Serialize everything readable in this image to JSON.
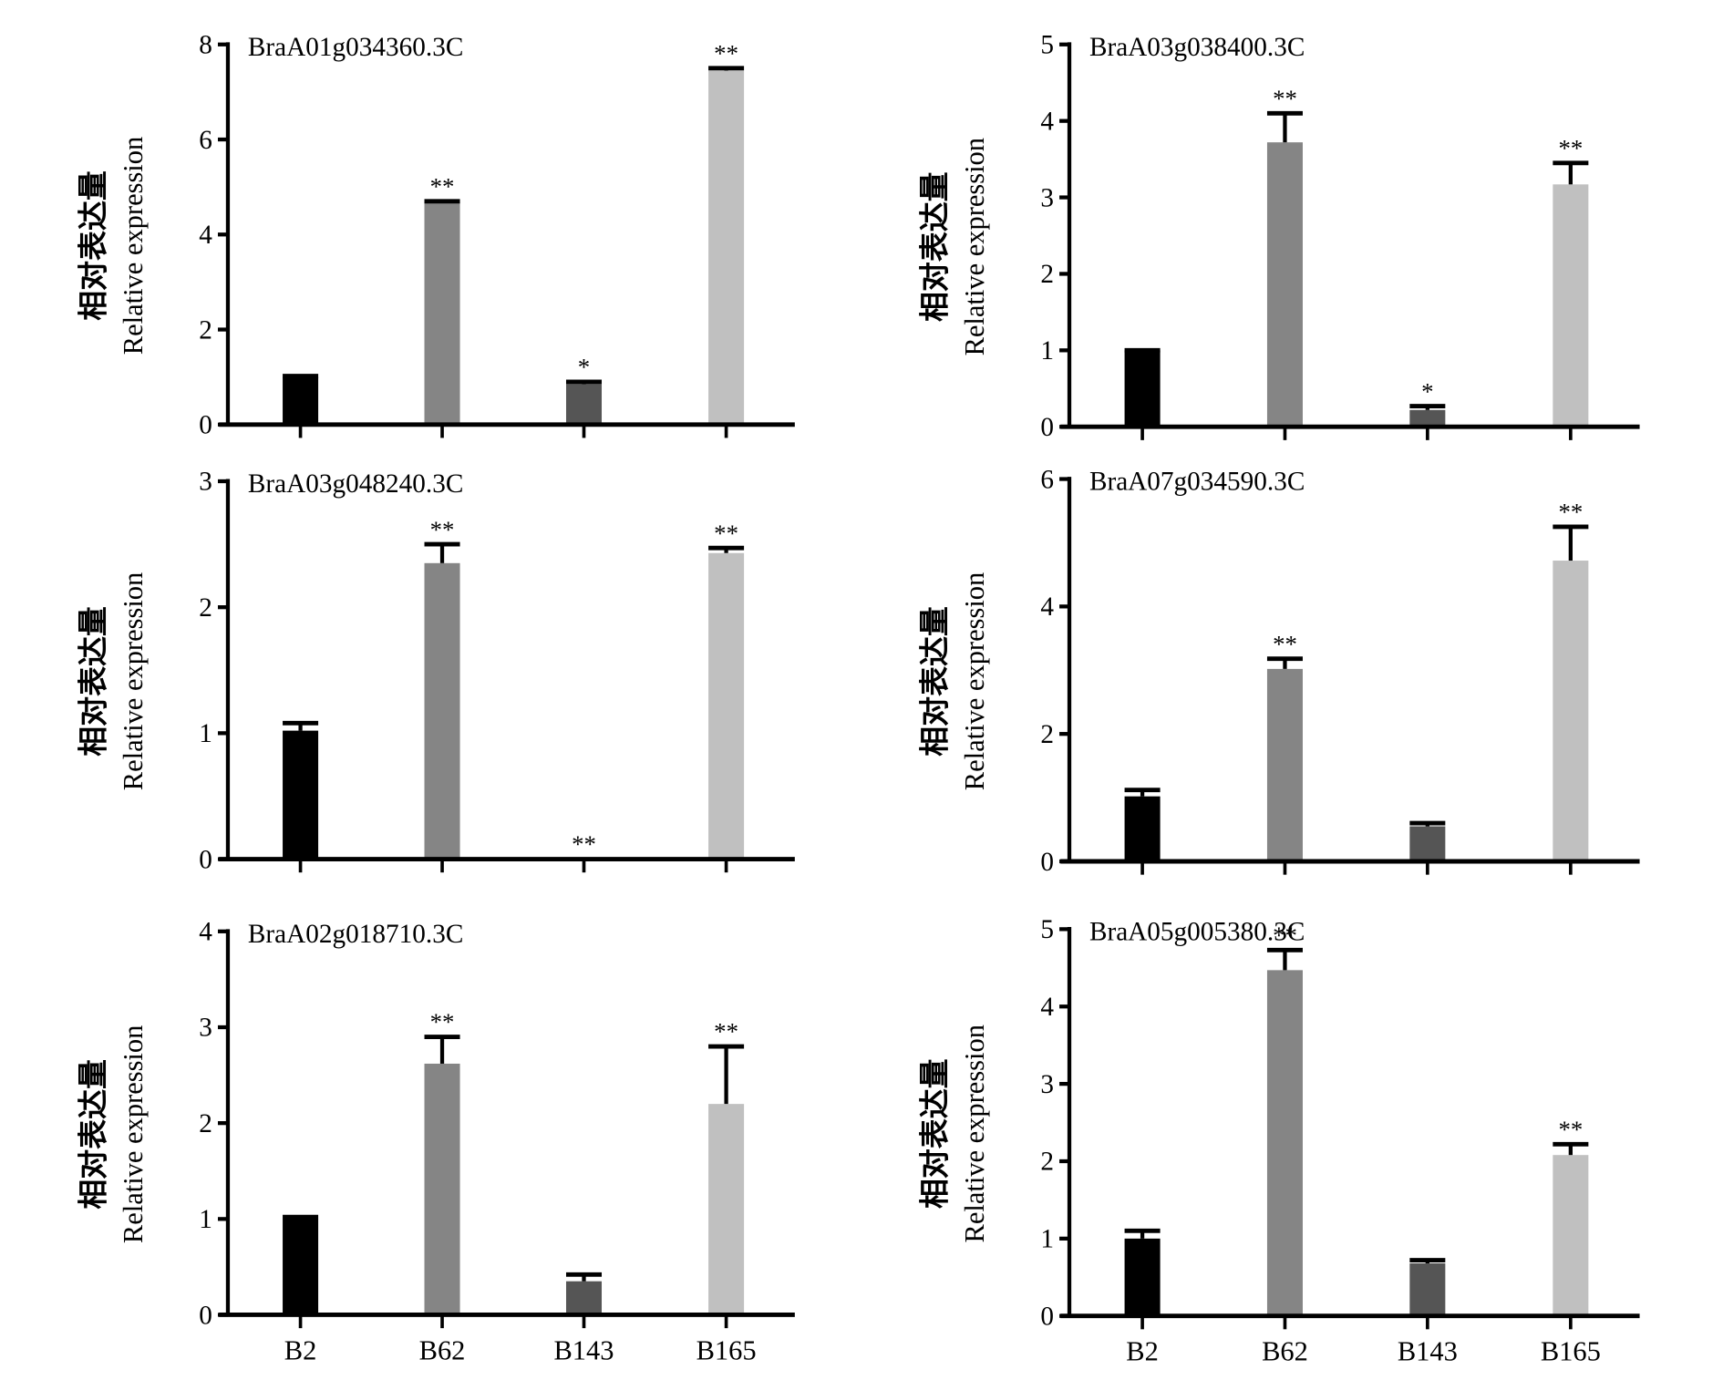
{
  "figure": {
    "colors": {
      "axis": "#000000",
      "B2": "#000000",
      "B62": "#858585",
      "B143": "#555555",
      "B165": "#c0c0c0"
    }
  },
  "chart_data": [
    {
      "type": "bar",
      "title": "BraA01g034360.3C",
      "ylabel_cn": "相对表达量",
      "ylabel": "Relative expression",
      "xlabel": "",
      "categories": [
        "B2",
        "B62",
        "B143",
        "B165"
      ],
      "show_xticklabels": false,
      "values": [
        1.0,
        4.68,
        0.85,
        7.45
      ],
      "error_upper": [
        1.02,
        4.7,
        0.9,
        7.5
      ],
      "significance": [
        "",
        "**",
        "*",
        "**"
      ],
      "ylim": [
        0,
        8
      ],
      "yticks": [
        0,
        2,
        4,
        6,
        8
      ],
      "grid": false
    },
    {
      "type": "bar",
      "title": "BraA03g038400.3C",
      "ylabel_cn": "相对表达量",
      "ylabel": "Relative expression",
      "xlabel": "",
      "categories": [
        "B2",
        "B62",
        "B143",
        "B165"
      ],
      "show_xticklabels": false,
      "values": [
        1.0,
        3.72,
        0.22,
        3.17
      ],
      "error_upper": [
        1.0,
        4.1,
        0.27,
        3.45
      ],
      "significance": [
        "",
        "**",
        "*",
        "**"
      ],
      "ylim": [
        0,
        5
      ],
      "yticks": [
        0,
        1,
        2,
        3,
        4,
        5
      ],
      "grid": false
    },
    {
      "type": "bar",
      "title": "BraA03g048240.3C",
      "ylabel_cn": "相对表达量",
      "ylabel": "Relative expression",
      "xlabel": "",
      "categories": [
        "B2",
        "B62",
        "B143",
        "B165"
      ],
      "show_xticklabels": false,
      "values": [
        1.02,
        2.35,
        0.0,
        2.43
      ],
      "error_upper": [
        1.08,
        2.5,
        0.0,
        2.47
      ],
      "significance": [
        "",
        "**",
        "**",
        "**"
      ],
      "ylim": [
        0,
        3
      ],
      "yticks": [
        0,
        1,
        2,
        3
      ],
      "grid": false
    },
    {
      "type": "bar",
      "title": "BraA07g034590.3C",
      "ylabel_cn": "相对表达量",
      "ylabel": "Relative expression",
      "xlabel": "",
      "categories": [
        "B2",
        "B62",
        "B143",
        "B165"
      ],
      "show_xticklabels": false,
      "values": [
        1.02,
        3.02,
        0.55,
        4.72
      ],
      "error_upper": [
        1.12,
        3.18,
        0.6,
        5.25
      ],
      "significance": [
        "",
        "**",
        "",
        "**"
      ],
      "ylim": [
        0,
        6
      ],
      "yticks": [
        0,
        2,
        4,
        6
      ],
      "grid": false
    },
    {
      "type": "bar",
      "title": "BraA02g018710.3C",
      "ylabel_cn": "相对表达量",
      "ylabel": "Relative expression",
      "xlabel": "",
      "categories": [
        "B2",
        "B62",
        "B143",
        "B165"
      ],
      "show_xticklabels": true,
      "values": [
        1.0,
        2.62,
        0.35,
        2.2
      ],
      "error_upper": [
        1.02,
        2.9,
        0.42,
        2.8
      ],
      "significance": [
        "",
        "**",
        "",
        "**"
      ],
      "ylim": [
        0,
        4
      ],
      "yticks": [
        0,
        1,
        2,
        3,
        4
      ],
      "grid": false
    },
    {
      "type": "bar",
      "title": "BraA05g005380.3C",
      "ylabel_cn": "相对表达量",
      "ylabel": "Relative expression",
      "xlabel": "",
      "categories": [
        "B2",
        "B62",
        "B143",
        "B165"
      ],
      "show_xticklabels": true,
      "values": [
        1.0,
        4.47,
        0.68,
        2.08
      ],
      "error_upper": [
        1.1,
        4.73,
        0.72,
        2.22
      ],
      "significance": [
        "",
        "**",
        "",
        "**"
      ],
      "ylim": [
        0,
        5
      ],
      "yticks": [
        0,
        1,
        2,
        3,
        4,
        5
      ],
      "grid": false
    }
  ]
}
